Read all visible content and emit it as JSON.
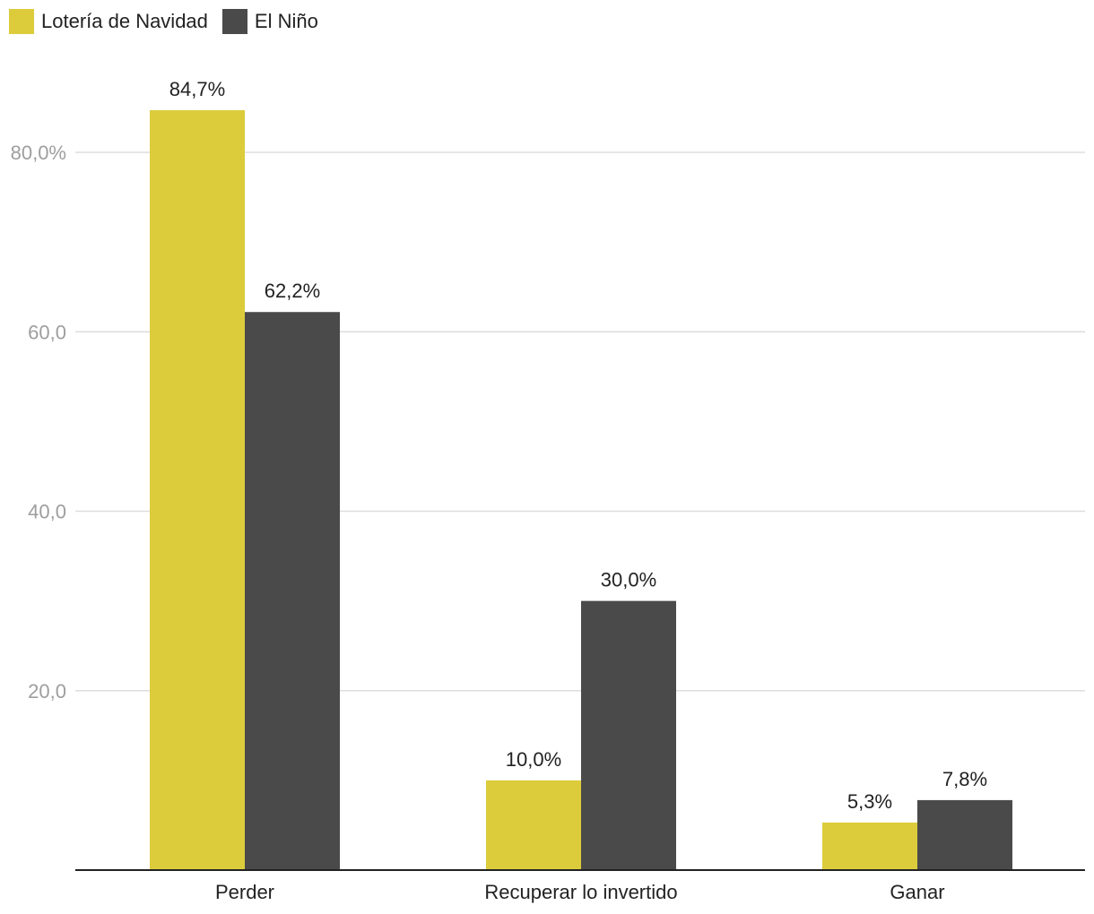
{
  "chart_data": {
    "type": "bar",
    "categories": [
      "Perder",
      "Recuperar lo invertido",
      "Ganar"
    ],
    "series": [
      {
        "name": "Lotería de Navidad",
        "values": [
          84.7,
          10.0,
          5.3
        ],
        "labels": [
          "84,7%",
          "10,0%",
          "5,3%"
        ],
        "color": "#dccc3b"
      },
      {
        "name": "El Niño",
        "values": [
          62.2,
          30.0,
          7.8
        ],
        "labels": [
          "62,2%",
          "30,0%",
          "7,8%"
        ],
        "color": "#4a4a4a"
      }
    ],
    "yticks": [
      {
        "value": 20,
        "label": "20,0"
      },
      {
        "value": 40,
        "label": "40,0"
      },
      {
        "value": 60,
        "label": "60,0"
      },
      {
        "value": 80,
        "label": "80,0%"
      }
    ],
    "ylim": [
      0,
      100
    ],
    "grid": true,
    "legend_position": "top-left"
  }
}
